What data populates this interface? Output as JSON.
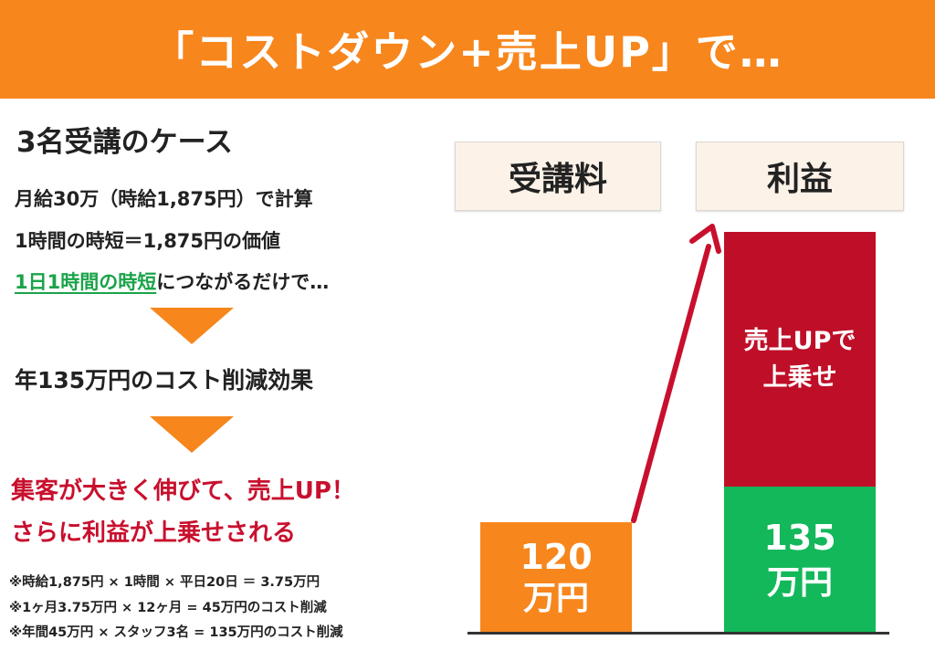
{
  "banner": {
    "title": "「コストダウン+売上UP」で…"
  },
  "left": {
    "case_title": "3名受講のケース",
    "line1": "月給30万（時給1,875円）で計算",
    "line2": "1時間の時短＝1,875円の価値",
    "line3_highlight": "1日1時間の時短",
    "line3_rest": "につながるだけで…",
    "effect": "年135万円のコスト削減効果",
    "result1": "集客が大きく伸びて、売上UP！",
    "result2": "さらに利益が上乗せされる",
    "notes": [
      "※時給1,875円 × 1時間 × 平日20日 ＝ 3.75万円",
      "※1ヶ月3.75万円 × 12ヶ月 = 45万円のコスト削減",
      "※年間45万円 × スタッフ3名 = 135万円のコスト削減"
    ]
  },
  "chart": {
    "label_fee": "受講料",
    "label_profit": "利益",
    "fee_value": "120",
    "fee_unit": "万円",
    "profit_base_value": "135",
    "profit_base_unit": "万円",
    "upsell_line1": "売上UPで",
    "upsell_line2": "上乗せ",
    "colors": {
      "fee": "#f7861c",
      "upsell": "#bf0f28",
      "base": "#12b85a",
      "arrow": "#c8102e"
    }
  }
}
